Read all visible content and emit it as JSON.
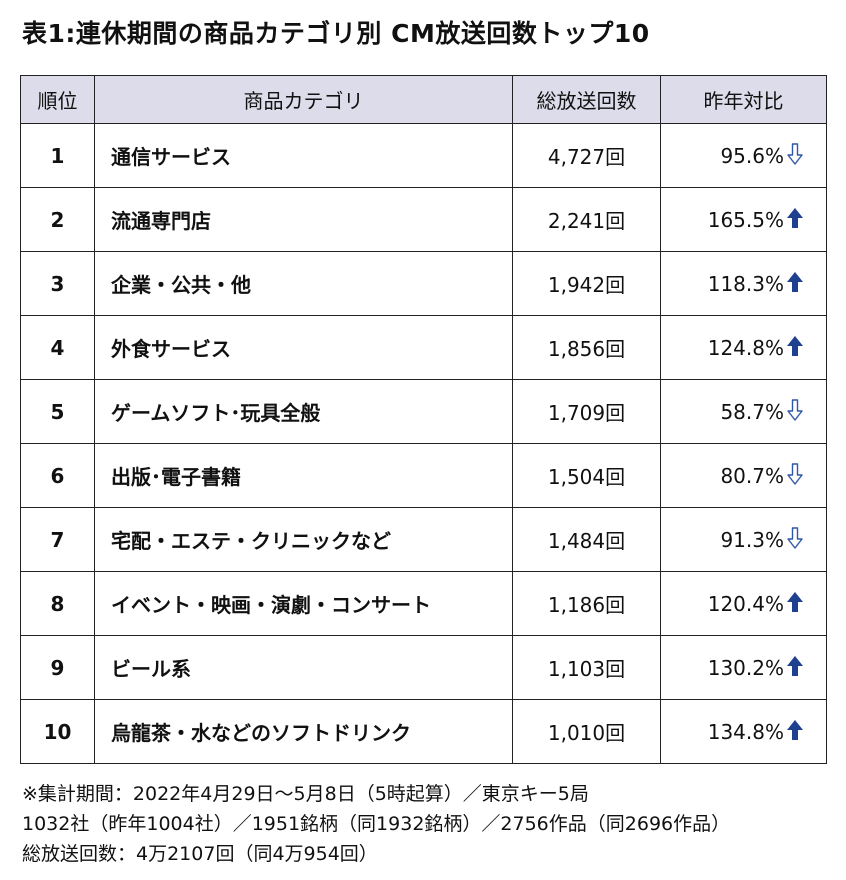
{
  "title": "表1:連休期間の商品カテゴリ別 CM放送回数トップ10",
  "table": {
    "headers": [
      "順位",
      "商品カテゴリ",
      "総放送回数",
      "昨年対比"
    ],
    "rows": [
      {
        "rank": "1",
        "category": "通信サービス",
        "count": "4,727回",
        "yoy": "95.6%",
        "trend": "down"
      },
      {
        "rank": "2",
        "category": "流通専門店",
        "count": "2,241回",
        "yoy": "165.5%",
        "trend": "up"
      },
      {
        "rank": "3",
        "category": "企業・公共・他",
        "count": "1,942回",
        "yoy": "118.3%",
        "trend": "up"
      },
      {
        "rank": "4",
        "category": "外食サービス",
        "count": "1,856回",
        "yoy": "124.8%",
        "trend": "up"
      },
      {
        "rank": "5",
        "category": "ゲームソフト･玩具全般",
        "count": "1,709回",
        "yoy": "58.7%",
        "trend": "down"
      },
      {
        "rank": "6",
        "category": "出版･電子書籍",
        "count": "1,504回",
        "yoy": "80.7%",
        "trend": "down"
      },
      {
        "rank": "7",
        "category": "宅配・エステ・クリニックなど",
        "count": "1,484回",
        "yoy": "91.3%",
        "trend": "down"
      },
      {
        "rank": "8",
        "category": "イベント・映画・演劇・コンサート",
        "count": "1,186回",
        "yoy": "120.4%",
        "trend": "up"
      },
      {
        "rank": "9",
        "category": "ビール系",
        "count": "1,103回",
        "yoy": "130.2%",
        "trend": "up"
      },
      {
        "rank": "10",
        "category": "烏龍茶・水などのソフトドリンク",
        "count": "1,010回",
        "yoy": "134.8%",
        "trend": "up"
      }
    ]
  },
  "notes": [
    "※集計期間：2022年4月29日～5月8日（5時起算）／東京キー5局",
    "1032社（昨年1004社）／1951銘柄（同1932銘柄）／2756作品（同2696作品）",
    "総放送回数：4万2107回（同4万954回）"
  ],
  "colors": {
    "header_bg": "#dcdcea",
    "up_arrow": "#1f3f8f",
    "down_arrow": "#2f56a8"
  },
  "icons": {
    "up": "arrow-up-filled-icon",
    "down": "arrow-down-outline-icon"
  }
}
